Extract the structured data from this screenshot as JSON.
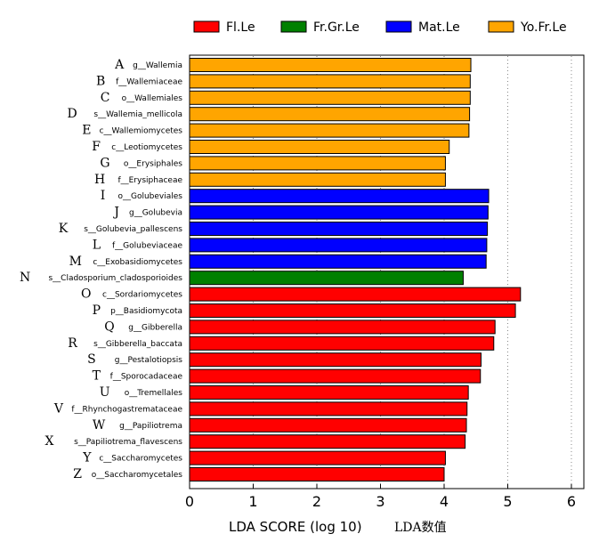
{
  "chart_data": {
    "type": "bar",
    "orientation": "horizontal",
    "xlabel": "LDA SCORE (log 10)",
    "xlabel_note": "LDA数值",
    "xlim": [
      0,
      6.2
    ],
    "xticks": [
      0,
      1,
      2,
      3,
      4,
      5,
      6
    ],
    "grid": "vertical dotted",
    "legend_position": "top",
    "legend": [
      {
        "name": "Fl.Le",
        "color": "#ff0000"
      },
      {
        "name": "Fr.Gr.Le",
        "color": "#008000"
      },
      {
        "name": "Mat.Le",
        "color": "#0000ff"
      },
      {
        "name": "Yo.Fr.Le",
        "color": "#ffa500"
      }
    ],
    "bars": [
      {
        "letter": "A",
        "label": "g__Wallemia",
        "value": 4.42,
        "group": "Yo.Fr.Le"
      },
      {
        "letter": "B",
        "label": "f__Wallemiaceae",
        "value": 4.41,
        "group": "Yo.Fr.Le"
      },
      {
        "letter": "C",
        "label": "o__Wallemiales",
        "value": 4.41,
        "group": "Yo.Fr.Le"
      },
      {
        "letter": "D",
        "label": "s__Wallemia_mellicola",
        "value": 4.4,
        "group": "Yo.Fr.Le"
      },
      {
        "letter": "E",
        "label": "c__Wallemiomycetes",
        "value": 4.39,
        "group": "Yo.Fr.Le"
      },
      {
        "letter": "F",
        "label": "c__Leotiomycetes",
        "value": 4.08,
        "group": "Yo.Fr.Le"
      },
      {
        "letter": "G",
        "label": "o__Erysiphales",
        "value": 4.02,
        "group": "Yo.Fr.Le"
      },
      {
        "letter": "H",
        "label": "f__Erysiphaceae",
        "value": 4.02,
        "group": "Yo.Fr.Le"
      },
      {
        "letter": "I",
        "label": "o__Golubeviales",
        "value": 4.7,
        "group": "Mat.Le"
      },
      {
        "letter": "J",
        "label": "g__Golubevia",
        "value": 4.69,
        "group": "Mat.Le"
      },
      {
        "letter": "K",
        "label": "s__Golubevia_pallescens",
        "value": 4.68,
        "group": "Mat.Le"
      },
      {
        "letter": "L",
        "label": "f__Golubeviaceae",
        "value": 4.67,
        "group": "Mat.Le"
      },
      {
        "letter": "M",
        "label": "c__Exobasidiomycetes",
        "value": 4.66,
        "group": "Mat.Le"
      },
      {
        "letter": "N",
        "label": "s__Cladosporium_cladosporioides",
        "value": 4.3,
        "group": "Fr.Gr.Le"
      },
      {
        "letter": "O",
        "label": "c__Sordariomycetes",
        "value": 5.2,
        "group": "Fl.Le"
      },
      {
        "letter": "P",
        "label": "p__Basidiomycota",
        "value": 5.12,
        "group": "Fl.Le"
      },
      {
        "letter": "Q",
        "label": "g__Gibberella",
        "value": 4.8,
        "group": "Fl.Le"
      },
      {
        "letter": "R",
        "label": "s__Gibberella_baccata",
        "value": 4.78,
        "group": "Fl.Le"
      },
      {
        "letter": "S",
        "label": "g__Pestalotiopsis",
        "value": 4.58,
        "group": "Fl.Le"
      },
      {
        "letter": "T",
        "label": "f__Sporocadaceae",
        "value": 4.57,
        "group": "Fl.Le"
      },
      {
        "letter": "U",
        "label": "o__Tremellales",
        "value": 4.38,
        "group": "Fl.Le"
      },
      {
        "letter": "V",
        "label": "f__Rhynchogastremataceae",
        "value": 4.36,
        "group": "Fl.Le"
      },
      {
        "letter": "W",
        "label": "g__Papiliotrema",
        "value": 4.35,
        "group": "Fl.Le"
      },
      {
        "letter": "X",
        "label": "s__Papiliotrema_flavescens",
        "value": 4.33,
        "group": "Fl.Le"
      },
      {
        "letter": "Y",
        "label": "c__Saccharomycetes",
        "value": 4.02,
        "group": "Fl.Le"
      },
      {
        "letter": "Z",
        "label": "o__Saccharomycetales",
        "value": 4.0,
        "group": "Fl.Le"
      }
    ]
  }
}
